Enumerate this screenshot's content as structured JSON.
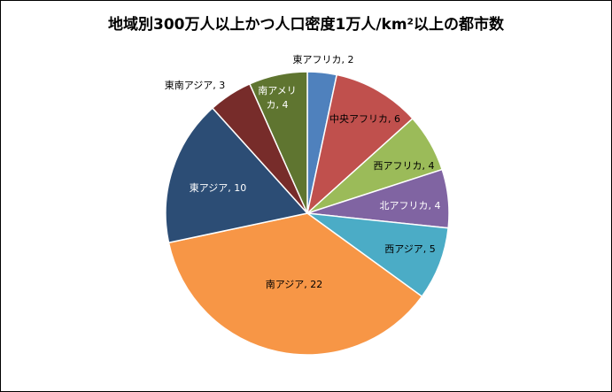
{
  "chart_data": {
    "type": "pie",
    "title": "地域別300万人以上かつ人口密度1万人/km²以上の都市数",
    "categories": [
      "東アフリカ",
      "中央アフリカ",
      "西アフリカ",
      "北アフリカ",
      "西アジア",
      "南アジア",
      "東アジア",
      "東南アジア",
      "南アメリカ"
    ],
    "values": [
      2,
      6,
      4,
      4,
      5,
      22,
      10,
      3,
      4
    ],
    "colors": [
      "#4F81BD",
      "#C0504D",
      "#9BBB59",
      "#8064A2",
      "#4BACC6",
      "#F79646",
      "#2C4D75",
      "#772C2A",
      "#5F7530"
    ],
    "label_colors": [
      "#000000",
      "#000000",
      "#000000",
      "#FFFFFF",
      "#000000",
      "#000000",
      "#FFFFFF",
      "#000000",
      "#FFFFFF"
    ],
    "start": "top",
    "direction": "clockwise",
    "legend": "none"
  }
}
